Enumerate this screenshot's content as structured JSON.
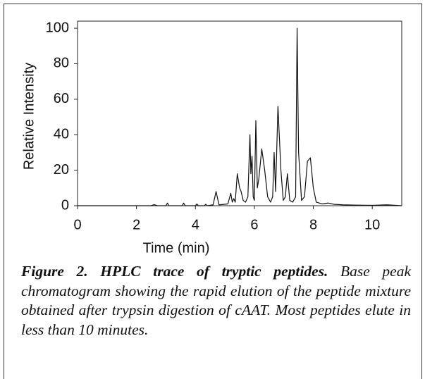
{
  "chart_data": {
    "type": "line",
    "x": [
      0,
      2.5,
      2.6,
      2.7,
      3.0,
      3.05,
      3.1,
      3.55,
      3.6,
      3.65,
      4.0,
      4.05,
      4.1,
      4.3,
      4.35,
      4.4,
      4.6,
      4.7,
      4.8,
      5.1,
      5.2,
      5.25,
      5.3,
      5.35,
      5.42,
      5.5,
      5.55,
      5.62,
      5.7,
      5.78,
      5.85,
      5.88,
      5.92,
      5.96,
      6.0,
      6.05,
      6.1,
      6.15,
      6.25,
      6.35,
      6.45,
      6.55,
      6.62,
      6.67,
      6.72,
      6.8,
      6.9,
      6.98,
      7.05,
      7.12,
      7.2,
      7.3,
      7.4,
      7.45,
      7.5,
      7.6,
      7.7,
      7.8,
      7.9,
      8.0,
      8.1,
      8.3,
      8.5,
      8.7,
      9.0,
      9.5,
      10.0,
      10.5,
      11
    ],
    "values": [
      0,
      0,
      0.6,
      0,
      0,
      1.5,
      0,
      0,
      1.5,
      0,
      0,
      1,
      0,
      0,
      0.8,
      0,
      0.5,
      8,
      0.5,
      1,
      7,
      2,
      4,
      2,
      18,
      10,
      8,
      3,
      2,
      5,
      40,
      18,
      28,
      5,
      3,
      48,
      10,
      15,
      32,
      20,
      5,
      2,
      5,
      30,
      8,
      56,
      20,
      3,
      5,
      18,
      3,
      2,
      5,
      100,
      30,
      3,
      5,
      25,
      27,
      10,
      2,
      1,
      1.5,
      0.8,
      0.5,
      0.3,
      0.2,
      0.5,
      0
    ],
    "color": "#111111",
    "xlabel": "Time (min)",
    "ylabel": "Relative Intensity",
    "xlim": [
      0,
      11
    ],
    "ylim": [
      0,
      104
    ],
    "xticks": [
      0,
      2,
      4,
      6,
      8,
      10
    ],
    "yticks": [
      0,
      20,
      40,
      60,
      80,
      100
    ],
    "caption_title": "Figure 2. HPLC trace of tryptic peptides.",
    "caption_text": "Base peak chromatogram showing the rapid elution of the peptide mixture obtained after trypsin digestion of cAAT. Most peptides elute in less than 10 minutes."
  }
}
